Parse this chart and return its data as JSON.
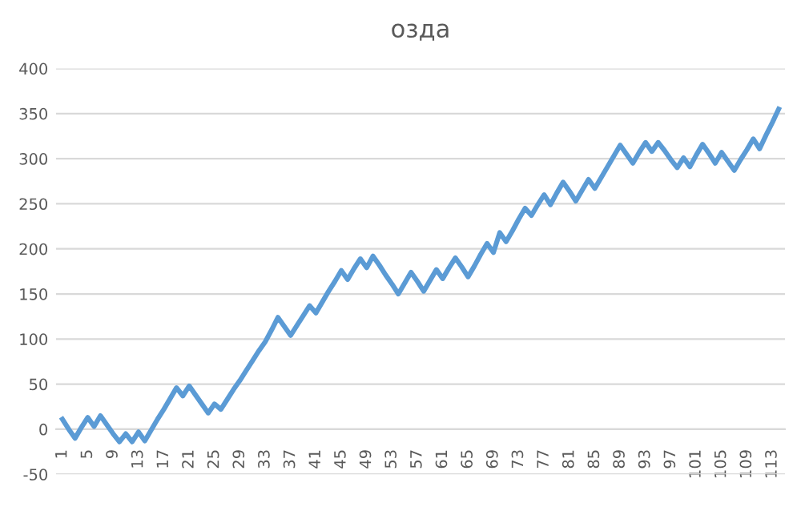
{
  "chart_data": {
    "type": "line",
    "title": "озда",
    "categories": [
      "1",
      null,
      null,
      null,
      "5",
      null,
      null,
      null,
      "9",
      null,
      null,
      null,
      "13",
      null,
      null,
      null,
      "17",
      null,
      null,
      null,
      "21",
      null,
      null,
      null,
      "25",
      null,
      null,
      null,
      "29",
      null,
      null,
      null,
      "33",
      null,
      null,
      null,
      "37",
      null,
      null,
      null,
      "41",
      null,
      null,
      null,
      "45",
      null,
      null,
      null,
      "49",
      null,
      null,
      null,
      "53",
      null,
      null,
      null,
      "57",
      null,
      null,
      null,
      "61",
      null,
      null,
      null,
      "65",
      null,
      null,
      null,
      "69",
      null,
      null,
      null,
      "73",
      null,
      null,
      null,
      "77",
      null,
      null,
      null,
      "81",
      null,
      null,
      null,
      "85",
      null,
      null,
      null,
      "89",
      null,
      null,
      null,
      "93",
      null,
      null,
      null,
      "97",
      null,
      null,
      null,
      "101",
      null,
      null,
      null,
      "105",
      null,
      null,
      null,
      "109",
      null,
      null,
      null,
      "113",
      null
    ],
    "series": [
      {
        "color": "#5b9bd5",
        "values": [
          11,
          0,
          -10,
          2,
          13,
          3,
          15,
          5,
          -5,
          -14,
          -5,
          -14,
          -3,
          -13,
          -1,
          11,
          22,
          34,
          46,
          37,
          48,
          38,
          28,
          18,
          28,
          22,
          33,
          44,
          54,
          65,
          76,
          87,
          97,
          110,
          124,
          114,
          104,
          115,
          126,
          137,
          129,
          141,
          153,
          164,
          176,
          166,
          178,
          189,
          179,
          192,
          182,
          171,
          161,
          150,
          162,
          174,
          164,
          153,
          165,
          177,
          167,
          179,
          190,
          180,
          169,
          181,
          194,
          206,
          196,
          218,
          208,
          220,
          233,
          245,
          237,
          249,
          260,
          249,
          262,
          274,
          264,
          253,
          265,
          277,
          267,
          279,
          291,
          303,
          315,
          305,
          295,
          307,
          318,
          308,
          318,
          309,
          299,
          290,
          301,
          291,
          304,
          316,
          306,
          295,
          307,
          297,
          287,
          299,
          310,
          322,
          311,
          326,
          340,
          355
        ]
      }
    ],
    "ylim": [
      -50,
      400
    ],
    "yticks": [
      -50,
      0,
      50,
      100,
      150,
      200,
      250,
      300,
      350,
      400
    ],
    "grid": "y",
    "marker": "none",
    "line_style": "solid"
  }
}
